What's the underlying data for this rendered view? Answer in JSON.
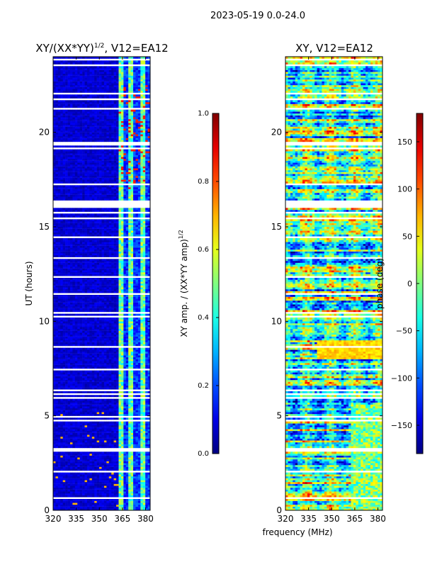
{
  "suptitle": "2023-05-19 0.0-24.0",
  "xlabel_shared": "frequency (MHz)",
  "chart_data": [
    {
      "type": "heatmap",
      "title_main": "XY/(XX*YY)",
      "title_sup": "1/2",
      "title_rest": ", V12=EA12",
      "ylabel": "UT (hours)",
      "xlim": [
        320,
        383
      ],
      "ylim": [
        0,
        24
      ],
      "xticks": [
        320,
        335,
        350,
        365,
        380
      ],
      "yticks": [
        0,
        5,
        10,
        15,
        20
      ],
      "colormap": "jet",
      "colorbar": {
        "label_main": "XY amp. / (XX*YY amp)",
        "label_sup": "1/2",
        "range": [
          0.0,
          1.0
        ],
        "ticks": [
          "0.0",
          "0.2",
          "0.4",
          "0.6",
          "0.8",
          "1.0"
        ]
      }
    },
    {
      "type": "heatmap",
      "title_main": "XY, V12=EA12",
      "ylabel": "",
      "xlim": [
        320,
        383
      ],
      "ylim": [
        0,
        24
      ],
      "xticks": [
        320,
        335,
        350,
        365,
        380
      ],
      "yticks": [
        0,
        5,
        10,
        15,
        20
      ],
      "colormap": "jet",
      "colorbar": {
        "label_main": "phase (deg)",
        "range": [
          -180,
          180
        ],
        "ticks": [
          150,
          100,
          50,
          0,
          -50,
          -100,
          -150
        ],
        "tick_labels": [
          "150",
          "100",
          "50",
          "0",
          "−50",
          "−100",
          "−150"
        ]
      }
    }
  ]
}
